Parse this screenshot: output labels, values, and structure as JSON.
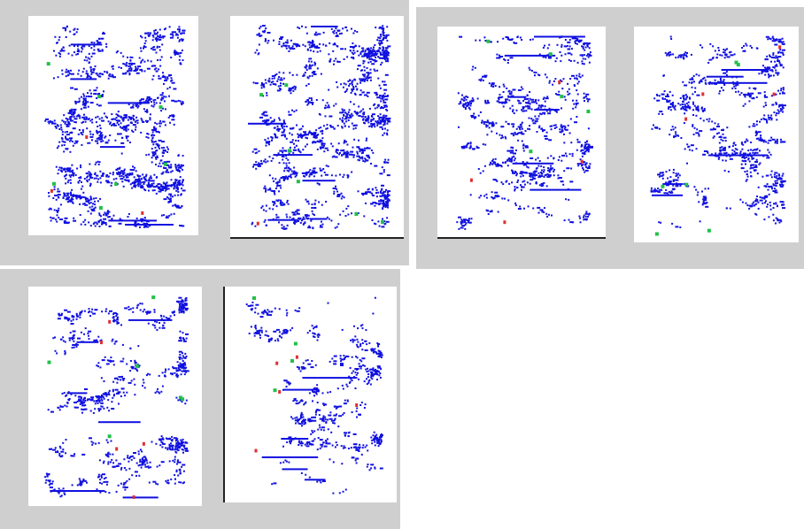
{
  "colors": {
    "points": "#1010e0",
    "red": "#e03030",
    "green": "#22c04a",
    "panel_bg": "#cfcfcf",
    "axis": "#222222"
  },
  "chart_data": [
    {
      "type": "scatter",
      "title": "",
      "xlabel": "",
      "ylabel": "",
      "grid": false,
      "legend": "none",
      "series": [
        {
          "color": "blue",
          "density": "high"
        },
        {
          "color": "red",
          "count": 3
        },
        {
          "color": "green",
          "count": 7
        }
      ]
    },
    {
      "type": "scatter",
      "title": "",
      "xlabel": "",
      "ylabel": "",
      "grid": false,
      "legend": "none",
      "series": [
        {
          "color": "blue",
          "density": "high"
        },
        {
          "color": "red",
          "count": 1
        },
        {
          "color": "green",
          "count": 6
        }
      ]
    },
    {
      "type": "scatter",
      "title": "",
      "xlabel": "",
      "ylabel": "",
      "grid": false,
      "legend": "none",
      "series": [
        {
          "color": "blue",
          "density": "medium"
        },
        {
          "color": "red",
          "count": 4
        },
        {
          "color": "green",
          "count": 5
        }
      ]
    },
    {
      "type": "scatter",
      "title": "",
      "xlabel": "",
      "ylabel": "",
      "grid": false,
      "legend": "none",
      "series": [
        {
          "color": "blue",
          "density": "medium"
        },
        {
          "color": "red",
          "count": 4
        },
        {
          "color": "green",
          "count": 6
        }
      ]
    },
    {
      "type": "scatter",
      "title": "",
      "xlabel": "",
      "ylabel": "",
      "grid": false,
      "legend": "none",
      "series": [
        {
          "color": "blue",
          "density": "medium"
        },
        {
          "color": "red",
          "count": 5
        },
        {
          "color": "green",
          "count": 6
        }
      ]
    },
    {
      "type": "scatter",
      "title": "",
      "xlabel": "",
      "ylabel": "",
      "grid": false,
      "legend": "none",
      "series": [
        {
          "color": "blue",
          "density": "low"
        },
        {
          "color": "red",
          "count": 5
        },
        {
          "color": "green",
          "count": 4
        }
      ]
    }
  ]
}
